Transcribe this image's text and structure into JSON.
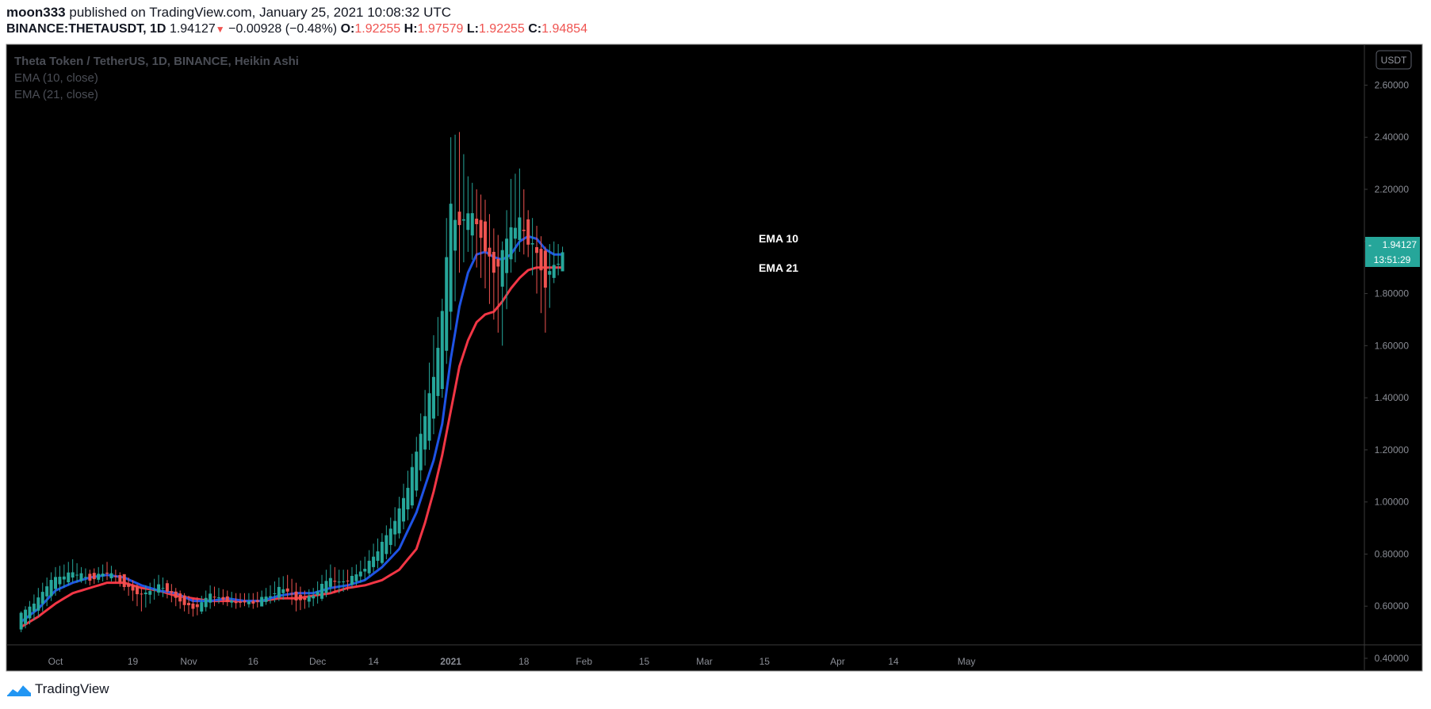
{
  "header": {
    "author": "moon333",
    "published_text": "published on TradingView.com, January 25, 2021 10:08:32 UTC",
    "symbol": "BINANCE:THETAUSDT, 1D",
    "last": "1.94127",
    "change_arrow": "▼",
    "change": "−0.00928 (−0.48%)",
    "o_label": "O:",
    "o_value": "1.92255",
    "h_label": "H:",
    "h_value": "1.97579",
    "l_label": "L:",
    "l_value": "1.92255",
    "c_label": "C:",
    "c_value": "1.94854"
  },
  "legend": {
    "title": "Theta Token / TetherUS, 1D, BINANCE, Heikin Ashi",
    "ema10": "EMA (10, close)",
    "ema21": "EMA (21, close)"
  },
  "price_axis": {
    "currency": "USDT",
    "last_price": "1.94127",
    "countdown": "13:51:29"
  },
  "annotations": {
    "ema10": "EMA 10",
    "ema21": "EMA 21"
  },
  "footer": {
    "brand": "TradingView"
  },
  "colors": {
    "background": "#000000",
    "up": "#26a69a",
    "down": "#ef5350",
    "ema10": "#1e53e5",
    "ema21": "#f23645",
    "axis_text": "#8a8d95"
  },
  "chart_data": {
    "type": "candlestick",
    "title": "Theta Token / TetherUS, 1D, BINANCE, Heikin Ashi",
    "y_ticks": [
      "2.60000",
      "2.40000",
      "2.20000",
      "2.00000",
      "1.80000",
      "1.60000",
      "1.40000",
      "1.20000",
      "1.00000",
      "0.80000",
      "0.60000",
      "0.40000"
    ],
    "ylim": [
      0.33,
      2.72
    ],
    "x_ticks": [
      {
        "label": "Oct",
        "day": 0,
        "bold": false
      },
      {
        "label": "19",
        "day": 18,
        "bold": false
      },
      {
        "label": "Nov",
        "day": 31,
        "bold": false
      },
      {
        "label": "16",
        "day": 46,
        "bold": false
      },
      {
        "label": "Dec",
        "day": 61,
        "bold": false
      },
      {
        "label": "14",
        "day": 74,
        "bold": false
      },
      {
        "label": "2021",
        "day": 92,
        "bold": true
      },
      {
        "label": "18",
        "day": 109,
        "bold": false
      },
      {
        "label": "Feb",
        "day": 123,
        "bold": false
      },
      {
        "label": "15",
        "day": 137,
        "bold": false
      },
      {
        "label": "Mar",
        "day": 151,
        "bold": false
      },
      {
        "label": "15",
        "day": 165,
        "bold": false
      },
      {
        "label": "Apr",
        "day": 182,
        "bold": false
      },
      {
        "label": "14",
        "day": 195,
        "bold": false
      },
      {
        "label": "May",
        "day": 212,
        "bold": false
      }
    ],
    "x_start_day": -8,
    "x_end_day": 219,
    "candle_keys": [
      -8,
      0.52,
      0.57,
      0.5,
      0.58,
      -6,
      0.55,
      0.6,
      0.53,
      0.62,
      -4,
      0.59,
      0.63,
      0.56,
      0.67,
      -2,
      0.63,
      0.68,
      0.6,
      0.71,
      0,
      0.67,
      0.71,
      0.64,
      0.75,
      2,
      0.69,
      0.72,
      0.67,
      0.76,
      4,
      0.71,
      0.73,
      0.69,
      0.78,
      6,
      0.71,
      0.72,
      0.69,
      0.75,
      8,
      0.72,
      0.7,
      0.68,
      0.74,
      10,
      0.71,
      0.72,
      0.69,
      0.75,
      12,
      0.72,
      0.73,
      0.7,
      0.77,
      14,
      0.72,
      0.71,
      0.69,
      0.74,
      16,
      0.71,
      0.68,
      0.66,
      0.72,
      18,
      0.68,
      0.66,
      0.62,
      0.7,
      20,
      0.66,
      0.64,
      0.58,
      0.67,
      22,
      0.64,
      0.66,
      0.61,
      0.69,
      24,
      0.66,
      0.68,
      0.64,
      0.72,
      26,
      0.68,
      0.66,
      0.63,
      0.7,
      28,
      0.66,
      0.63,
      0.6,
      0.67,
      30,
      0.63,
      0.61,
      0.58,
      0.65,
      32,
      0.61,
      0.59,
      0.56,
      0.63,
      34,
      0.59,
      0.61,
      0.57,
      0.64,
      36,
      0.61,
      0.65,
      0.59,
      0.68,
      38,
      0.64,
      0.63,
      0.61,
      0.67,
      40,
      0.63,
      0.62,
      0.6,
      0.66,
      42,
      0.62,
      0.61,
      0.59,
      0.65,
      44,
      0.61,
      0.62,
      0.6,
      0.65,
      46,
      0.62,
      0.61,
      0.59,
      0.65,
      48,
      0.61,
      0.63,
      0.6,
      0.66,
      50,
      0.63,
      0.64,
      0.61,
      0.68,
      52,
      0.64,
      0.67,
      0.62,
      0.71,
      54,
      0.66,
      0.66,
      0.63,
      0.72,
      56,
      0.66,
      0.62,
      0.58,
      0.69,
      58,
      0.62,
      0.63,
      0.59,
      0.66,
      60,
      0.63,
      0.64,
      0.6,
      0.67,
      62,
      0.64,
      0.68,
      0.62,
      0.72,
      64,
      0.67,
      0.71,
      0.65,
      0.76,
      66,
      0.7,
      0.69,
      0.65,
      0.74,
      68,
      0.69,
      0.7,
      0.66,
      0.74,
      70,
      0.7,
      0.72,
      0.68,
      0.76,
      72,
      0.72,
      0.75,
      0.7,
      0.79,
      74,
      0.75,
      0.79,
      0.73,
      0.84,
      76,
      0.78,
      0.84,
      0.76,
      0.88,
      78,
      0.83,
      0.9,
      0.8,
      0.94,
      80,
      0.89,
      0.97,
      0.86,
      1.02,
      82,
      0.96,
      1.06,
      0.93,
      1.12,
      84,
      1.05,
      1.19,
      1.02,
      1.25,
      86,
      1.18,
      1.34,
      1.14,
      1.43,
      88,
      1.32,
      1.48,
      1.26,
      1.64,
      90,
      1.46,
      1.72,
      1.4,
      1.78,
      92,
      1.72,
      2.15,
      1.66,
      2.4,
      94,
      2.14,
      2.05,
      1.88,
      2.42,
      96,
      2.02,
      2.12,
      1.96,
      2.25,
      98,
      2.1,
      2.06,
      1.9,
      2.2,
      100,
      2.04,
      1.98,
      1.82,
      2.16,
      102,
      1.96,
      1.88,
      1.7,
      2.05,
      104,
      1.86,
      1.95,
      1.6,
      2.0,
      106,
      1.92,
      2.06,
      1.88,
      2.24,
      108,
      2.03,
      2.08,
      1.96,
      2.28,
      110,
      2.06,
      2.0,
      1.94,
      2.12,
      112,
      1.99,
      1.95,
      1.8,
      2.06,
      114,
      1.93,
      1.84,
      1.65,
      1.98,
      116,
      1.86,
      1.91,
      1.84,
      2.0,
      118,
      1.92,
      1.94127,
      1.9,
      1.98
    ],
    "ema10_keys": [
      -8,
      0.54,
      -4,
      0.59,
      0,
      0.66,
      4,
      0.69,
      8,
      0.71,
      12,
      0.72,
      16,
      0.71,
      20,
      0.68,
      24,
      0.66,
      28,
      0.65,
      32,
      0.62,
      36,
      0.62,
      40,
      0.63,
      44,
      0.62,
      48,
      0.62,
      52,
      0.64,
      56,
      0.65,
      60,
      0.65,
      64,
      0.67,
      68,
      0.68,
      72,
      0.7,
      76,
      0.75,
      80,
      0.82,
      84,
      0.96,
      88,
      1.16,
      90,
      1.3,
      92,
      1.55,
      94,
      1.75,
      96,
      1.88,
      98,
      1.95,
      100,
      1.96,
      102,
      1.94,
      104,
      1.93,
      106,
      1.95,
      108,
      2.0,
      110,
      2.02,
      112,
      2.01,
      114,
      1.97,
      116,
      1.95,
      118,
      1.95
    ],
    "ema21_keys": [
      -8,
      0.52,
      -4,
      0.56,
      0,
      0.61,
      4,
      0.65,
      8,
      0.67,
      12,
      0.69,
      16,
      0.69,
      20,
      0.67,
      24,
      0.66,
      28,
      0.64,
      32,
      0.63,
      36,
      0.62,
      40,
      0.62,
      44,
      0.62,
      48,
      0.62,
      52,
      0.63,
      56,
      0.63,
      60,
      0.64,
      64,
      0.65,
      68,
      0.67,
      72,
      0.68,
      76,
      0.7,
      80,
      0.74,
      84,
      0.82,
      86,
      0.92,
      88,
      1.04,
      90,
      1.18,
      92,
      1.35,
      94,
      1.52,
      96,
      1.62,
      98,
      1.69,
      100,
      1.72,
      102,
      1.73,
      104,
      1.77,
      106,
      1.82,
      108,
      1.86,
      110,
      1.89,
      112,
      1.9,
      114,
      1.9,
      116,
      1.9,
      118,
      1.9
    ]
  }
}
